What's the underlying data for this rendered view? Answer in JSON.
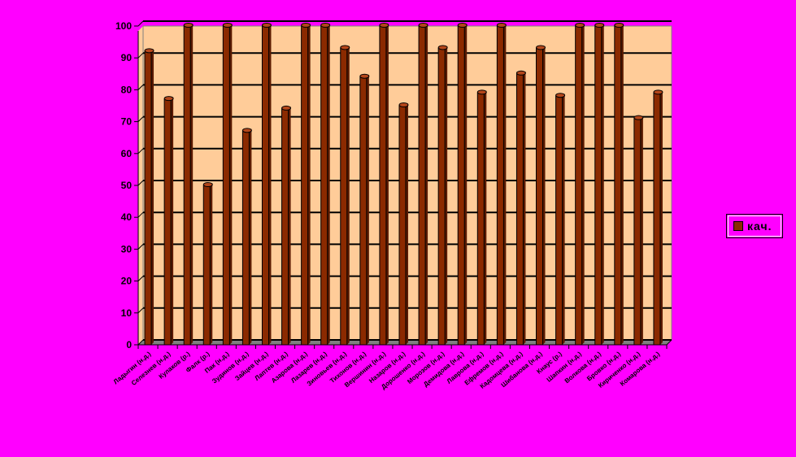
{
  "chart_data": {
    "type": "bar",
    "title": "",
    "xlabel": "",
    "ylabel": "",
    "ylim": [
      0,
      100
    ],
    "yticks": [
      0,
      10,
      20,
      30,
      40,
      50,
      60,
      70,
      80,
      90,
      100
    ],
    "grid": true,
    "legend_position": "right",
    "categories": [
      "Ладыгин (н.д.)",
      "Селезнев (н.д.)",
      "Кулаков (р.)",
      "Фалк (р.)",
      "Пак (н.д.)",
      "Зудинов (н.д.)",
      "Зайцев (н.д.)",
      "Лаптев (н.д.)",
      "Азарова (н.д.)",
      "Лазарев (н.д.)",
      "Зиновьев (н.д.)",
      "Тихонов (н.д.)",
      "Вершинин (н.д.)",
      "Назаров (н.д.)",
      "Дорошенко (н.д.)",
      "Морозов (н.д.)",
      "Демидова (н.д.)",
      "Лаврова (н.д.)",
      "Ефремов (н.д.)",
      "Кадомцева (н.д.)",
      "Шибанова (н.д.)",
      "Кнаус (р.)",
      "Шапкин (н.д.)",
      "Волкова (н.д.)",
      "Бровко (н.д.)",
      "Кириченко (н.д.)",
      "Комарова (н.д.)"
    ],
    "series": [
      {
        "name": "кач.",
        "values": [
          92,
          77,
          100,
          50,
          100,
          67,
          100,
          74,
          100,
          100,
          93,
          84,
          100,
          75,
          100,
          93,
          100,
          79,
          100,
          85,
          93,
          78,
          100,
          100,
          100,
          71,
          79
        ]
      }
    ],
    "colors": {
      "background": "#ff00ff",
      "plot_area": "#ffcc99",
      "bar": "#8b2a00",
      "bar_top": "#b5461a",
      "floor": "#808080",
      "grid": "#000000"
    }
  }
}
